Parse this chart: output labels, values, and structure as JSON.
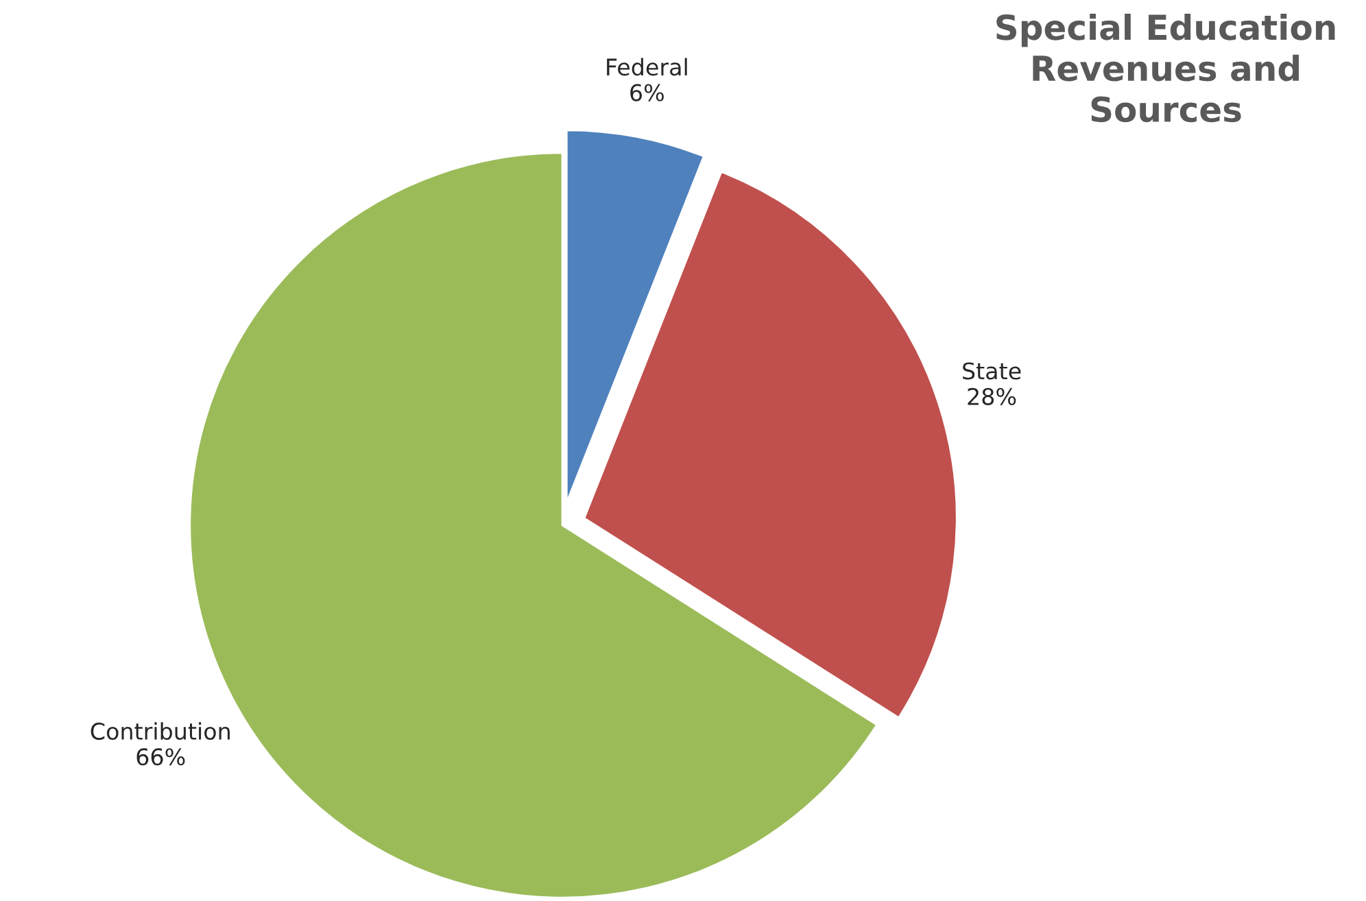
{
  "chart_data": {
    "type": "pie",
    "title": "Special Education\nRevenues and\nSources",
    "categories": [
      "Federal",
      "State",
      "Contribution"
    ],
    "values": [
      6,
      28,
      66
    ],
    "value_labels": [
      "6%",
      "28%",
      "66%"
    ],
    "colors": [
      "#4f81bd",
      "#c0504d",
      "#9bbb59"
    ],
    "legend": false
  }
}
